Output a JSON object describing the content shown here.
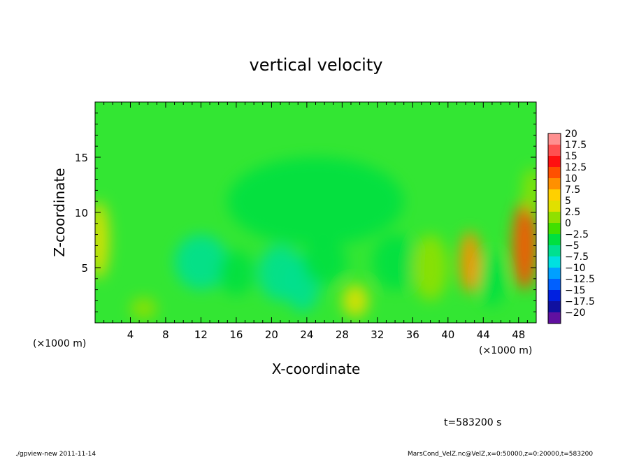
{
  "chart_data": {
    "type": "heatmap",
    "title": "vertical velocity",
    "xlabel": "X-coordinate",
    "ylabel": "Z-coordinate",
    "x_unit": "(×1000 m)",
    "x_unit_right": "(×1000 m)",
    "xlim": [
      0,
      50
    ],
    "ylim": [
      0,
      20
    ],
    "x_ticks": [
      "4",
      "8",
      "12",
      "16",
      "20",
      "24",
      "28",
      "32",
      "36",
      "40",
      "44",
      "48"
    ],
    "y_ticks": [
      "5",
      "10",
      "15"
    ],
    "colorbar": {
      "levels": [
        "20",
        "17.5",
        "15",
        "12.5",
        "10",
        "7.5",
        "5",
        "2.5",
        "0",
        "−2.5",
        "−5",
        "−7.5",
        "−10",
        "−12.5",
        "−15",
        "−17.5",
        "−20"
      ],
      "colors": [
        "#ff9090",
        "#ff5050",
        "#ff1010",
        "#ff5000",
        "#ff9000",
        "#ffd000",
        "#e0e000",
        "#90e000",
        "#40e000",
        "#00e040",
        "#00e090",
        "#00e0e0",
        "#00a0ff",
        "#0060ff",
        "#0020e0",
        "#1010a0",
        "#6010a0"
      ]
    },
    "field": {
      "background": "#33e633",
      "features": [
        {
          "x": 0.4,
          "z": 7.5,
          "sx": 1.2,
          "sz": 3.5,
          "w": 6.0
        },
        {
          "x": 5.5,
          "z": 1.3,
          "sx": 1.5,
          "sz": 1.0,
          "w": 3.0
        },
        {
          "x": 12,
          "z": 5.5,
          "sx": 3.0,
          "sz": 2.5,
          "w": -5.0
        },
        {
          "x": 16,
          "z": 4.5,
          "sx": 2.0,
          "sz": 2.0,
          "w": -3.0
        },
        {
          "x": 21,
          "z": 4.5,
          "sx": 2.5,
          "sz": 2.5,
          "w": -5.0
        },
        {
          "x": 23.5,
          "z": 3.5,
          "sx": 2.0,
          "sz": 2.5,
          "w": -6.0
        },
        {
          "x": 26,
          "z": 5.5,
          "sx": 2.5,
          "sz": 2.0,
          "w": -3.0
        },
        {
          "x": 29.5,
          "z": 2.0,
          "sx": 1.5,
          "sz": 1.5,
          "w": 4.0
        },
        {
          "x": 34,
          "z": 5.5,
          "sx": 2.5,
          "sz": 2.5,
          "w": -3.5
        },
        {
          "x": 38,
          "z": 5.0,
          "sx": 2.0,
          "sz": 3.0,
          "w": 2.0
        },
        {
          "x": 42.5,
          "z": 5.5,
          "sx": 1.2,
          "sz": 2.8,
          "w": 11.0
        },
        {
          "x": 45,
          "z": 4.0,
          "sx": 1.5,
          "sz": 2.5,
          "w": -3.0
        },
        {
          "x": 48.7,
          "z": 7.0,
          "sx": 1.4,
          "sz": 4.0,
          "w": 13.0
        },
        {
          "x": 49.5,
          "z": 12.0,
          "sx": 1.0,
          "sz": 2.0,
          "w": 3.0
        },
        {
          "x": 25,
          "z": 11.0,
          "sx": 10,
          "sz": 4.0,
          "w": -2.0
        }
      ]
    }
  },
  "time_label": "t=583200 s",
  "footer_left": "./gpview-new  2011-11-14",
  "footer_right": "MarsCond_VelZ.nc@VelZ,x=0:50000,z=0:20000,t=583200"
}
